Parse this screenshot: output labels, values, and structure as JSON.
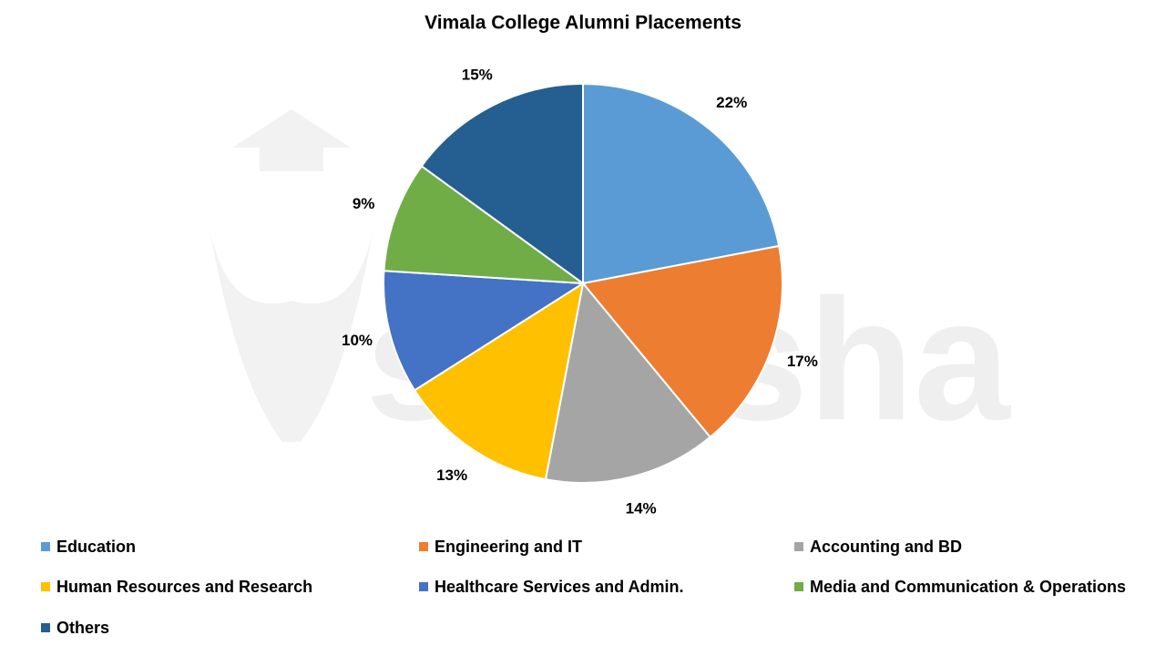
{
  "chart_data": {
    "type": "pie",
    "title": "Vimala College Alumni Placements",
    "watermark": "shiksha",
    "categories": [
      "Education",
      "Engineering and IT",
      "Accounting and BD",
      "Human Resources and Research",
      "Healthcare Services and Admin.",
      "Media and Communication & Operations",
      "Others"
    ],
    "values": [
      22,
      17,
      14,
      13,
      10,
      9,
      15
    ],
    "value_labels": [
      "22%",
      "17%",
      "14%",
      "13%",
      "10%",
      "9%",
      "15%"
    ],
    "colors": [
      "#5b9bd5",
      "#ed7d31",
      "#a5a5a5",
      "#ffc000",
      "#4472c4",
      "#70ad47",
      "#255e91"
    ],
    "legend": "bottom"
  }
}
